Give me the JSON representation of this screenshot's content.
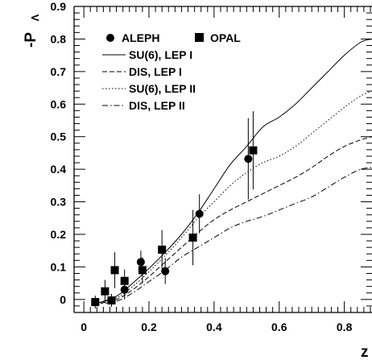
{
  "chart_data": {
    "type": "scatter",
    "title": "",
    "xlabel": "z",
    "ylabel": "-P",
    "ylabel_subscript": "Λ",
    "xlim": [
      -0.03,
      0.885
    ],
    "ylim": [
      -0.04,
      0.9
    ],
    "x_ticks": [
      "0",
      "0.2",
      "0.4",
      "0.6",
      "0.8"
    ],
    "y_ticks": [
      "0",
      "0.1",
      "0.2",
      "0.3",
      "0.4",
      "0.5",
      "0.6",
      "0.7",
      "0.8",
      "0.9"
    ],
    "legend_position": "top-left",
    "markers": [
      {
        "name": "ALEPH",
        "marker": "circle",
        "points": [
          {
            "x": 0.125,
            "y": 0.03,
            "err": 0.03
          },
          {
            "x": 0.175,
            "y": 0.115,
            "err": 0.035
          },
          {
            "x": 0.25,
            "y": 0.087,
            "err": 0.04
          },
          {
            "x": 0.355,
            "y": 0.263,
            "err": 0.06
          },
          {
            "x": 0.505,
            "y": 0.432,
            "err": 0.125
          }
        ]
      },
      {
        "name": "OPAL",
        "marker": "square",
        "points": [
          {
            "x": 0.035,
            "y": -0.008,
            "err": 0.02
          },
          {
            "x": 0.065,
            "y": 0.025,
            "err": 0.035
          },
          {
            "x": 0.085,
            "y": -0.003,
            "err": 0.02
          },
          {
            "x": 0.095,
            "y": 0.09,
            "err": 0.055
          },
          {
            "x": 0.125,
            "y": 0.057,
            "err": 0.035
          },
          {
            "x": 0.18,
            "y": 0.09,
            "err": 0.04
          },
          {
            "x": 0.24,
            "y": 0.153,
            "err": 0.06
          },
          {
            "x": 0.335,
            "y": 0.19,
            "err": 0.085
          },
          {
            "x": 0.52,
            "y": 0.458,
            "err": 0.12
          }
        ]
      }
    ],
    "curves": [
      {
        "name": "SU(6), LEP I",
        "style": "solid",
        "x": [
          0.03,
          0.1,
          0.15,
          0.2,
          0.25,
          0.3,
          0.35,
          0.4,
          0.45,
          0.5,
          0.55,
          0.6,
          0.65,
          0.7,
          0.75,
          0.8,
          0.85,
          0.885
        ],
        "y": [
          -0.015,
          0.01,
          0.05,
          0.095,
          0.145,
          0.2,
          0.265,
          0.34,
          0.415,
          0.47,
          0.53,
          0.56,
          0.6,
          0.65,
          0.7,
          0.75,
          0.79,
          0.8
        ]
      },
      {
        "name": "DIS, LEP I",
        "style": "dashed",
        "x": [
          0.03,
          0.1,
          0.15,
          0.2,
          0.25,
          0.3,
          0.35,
          0.4,
          0.45,
          0.5,
          0.55,
          0.6,
          0.65,
          0.7,
          0.75,
          0.8,
          0.85,
          0.885
        ],
        "y": [
          -0.015,
          0.0,
          0.03,
          0.07,
          0.115,
          0.16,
          0.205,
          0.245,
          0.275,
          0.3,
          0.325,
          0.35,
          0.375,
          0.405,
          0.44,
          0.47,
          0.49,
          0.5
        ]
      },
      {
        "name": "SU(6), LEP II",
        "style": "dotted",
        "x": [
          0.03,
          0.1,
          0.15,
          0.2,
          0.25,
          0.3,
          0.35,
          0.4,
          0.45,
          0.5,
          0.55,
          0.6,
          0.65,
          0.7,
          0.75,
          0.8,
          0.85,
          0.885
        ],
        "y": [
          -0.015,
          0.005,
          0.04,
          0.085,
          0.135,
          0.19,
          0.25,
          0.3,
          0.35,
          0.39,
          0.42,
          0.44,
          0.47,
          0.51,
          0.55,
          0.59,
          0.625,
          0.64
        ]
      },
      {
        "name": "DIS, LEP II",
        "style": "dashdot",
        "x": [
          0.03,
          0.1,
          0.15,
          0.2,
          0.25,
          0.3,
          0.35,
          0.4,
          0.45,
          0.5,
          0.55,
          0.6,
          0.65,
          0.7,
          0.75,
          0.8,
          0.85,
          0.885
        ],
        "y": [
          -0.015,
          -0.005,
          0.02,
          0.055,
          0.09,
          0.13,
          0.16,
          0.19,
          0.22,
          0.24,
          0.255,
          0.275,
          0.295,
          0.315,
          0.345,
          0.375,
          0.4,
          0.405
        ]
      }
    ]
  }
}
